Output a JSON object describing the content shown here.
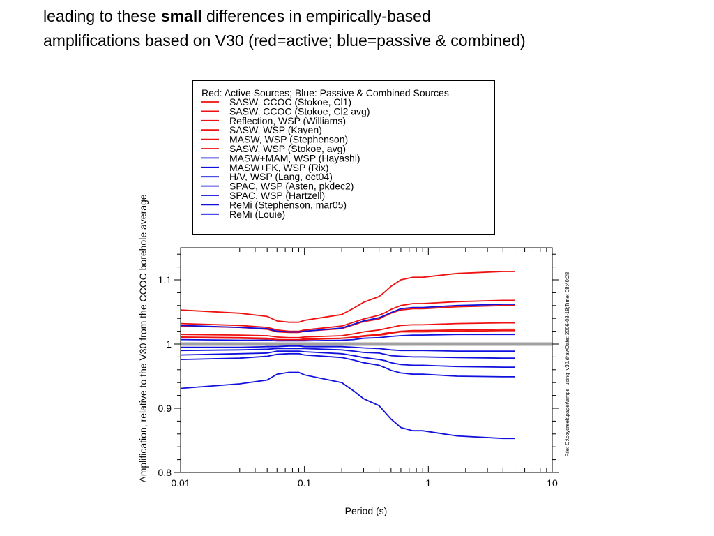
{
  "slide": {
    "title_pre": "leading to these ",
    "title_bold": "small",
    "title_post": " differences in empirically-based amplifications based on V30 (red=active; blue=passive & combined)"
  },
  "colors": {
    "active": "#ee1111",
    "passive": "#1111dd",
    "reference": "#a0a0a0"
  },
  "chart_data": {
    "type": "line",
    "xlabel": "Period (s)",
    "ylabel": "Amplification, relative to the V30 from the CCOC borehole average",
    "xscale": "log",
    "xlim": [
      0.01,
      10
    ],
    "ylim": [
      0.8,
      1.15
    ],
    "xticks": [
      {
        "v": 0.01,
        "label": "0.01"
      },
      {
        "v": 0.1,
        "label": "0.1"
      },
      {
        "v": 1,
        "label": "1"
      },
      {
        "v": 10,
        "label": "10"
      }
    ],
    "yticks": [
      {
        "v": 0.8,
        "label": "0.8"
      },
      {
        "v": 0.9,
        "label": "0.9"
      },
      {
        "v": 1,
        "label": "1"
      },
      {
        "v": 1.1,
        "label": "1.1"
      }
    ],
    "reference_line": 1.0,
    "legend_title": "Red: Active Sources; Blue: Passive & Combined Sources",
    "legend_position": "above plot",
    "side_note": "File: C:\\coycreek\\paper\\amps_using_v30.drawDate: 2006-08-18;Time: 08:40:28",
    "x": [
      0.01,
      0.03,
      0.05,
      0.06,
      0.075,
      0.09,
      0.1,
      0.2,
      0.25,
      0.3,
      0.4,
      0.45,
      0.5,
      0.6,
      0.75,
      0.9,
      1.7,
      4,
      5
    ],
    "series": [
      {
        "name": "SASW, CCOC (Stokoe, Cl1)",
        "group": "active",
        "values": [
          1.053,
          1.048,
          1.043,
          1.036,
          1.034,
          1.034,
          1.037,
          1.046,
          1.056,
          1.065,
          1.074,
          1.082,
          1.09,
          1.1,
          1.104,
          1.104,
          1.11,
          1.113,
          1.113
        ]
      },
      {
        "name": "SASW, CCOC (Stokoe, Cl2 avg)",
        "group": "active",
        "values": [
          1.032,
          1.029,
          1.026,
          1.022,
          1.02,
          1.02,
          1.022,
          1.028,
          1.034,
          1.039,
          1.045,
          1.049,
          1.054,
          1.06,
          1.063,
          1.063,
          1.066,
          1.068,
          1.068
        ]
      },
      {
        "name": "Reflection, WSP (Williams)",
        "group": "active",
        "values": [
          1.028,
          1.026,
          1.023,
          1.019,
          1.018,
          1.018,
          1.02,
          1.024,
          1.03,
          1.035,
          1.039,
          1.044,
          1.048,
          1.053,
          1.055,
          1.055,
          1.058,
          1.06,
          1.06
        ]
      },
      {
        "name": "SASW, WSP (Kayen)",
        "group": "active",
        "values": [
          1.015,
          1.014,
          1.013,
          1.011,
          1.01,
          1.01,
          1.011,
          1.013,
          1.016,
          1.019,
          1.022,
          1.024,
          1.026,
          1.029,
          1.03,
          1.03,
          1.032,
          1.033,
          1.033
        ]
      },
      {
        "name": "MASW, WSP (Stephenson)",
        "group": "active",
        "values": [
          1.011,
          1.01,
          1.009,
          1.007,
          1.007,
          1.007,
          1.008,
          1.009,
          1.011,
          1.013,
          1.015,
          1.017,
          1.018,
          1.02,
          1.021,
          1.021,
          1.022,
          1.023,
          1.023
        ]
      },
      {
        "name": "SASW, WSP (Stokoe, avg)",
        "group": "active",
        "values": [
          1.01,
          1.009,
          1.008,
          1.007,
          1.006,
          1.006,
          1.007,
          1.009,
          1.01,
          1.012,
          1.014,
          1.015,
          1.017,
          1.019,
          1.019,
          1.019,
          1.02,
          1.021,
          1.021
        ]
      },
      {
        "name": "MASW+MAM, WSP (Hayashi)",
        "group": "passive",
        "values": [
          1.029,
          1.026,
          1.024,
          1.02,
          1.019,
          1.019,
          1.02,
          1.025,
          1.031,
          1.036,
          1.041,
          1.045,
          1.049,
          1.055,
          1.057,
          1.057,
          1.06,
          1.062,
          1.062
        ]
      },
      {
        "name": "MASW+FK, WSP (Rix)",
        "group": "passive",
        "values": [
          1.007,
          1.006,
          1.006,
          1.005,
          1.005,
          1.005,
          1.005,
          1.006,
          1.007,
          1.009,
          1.01,
          1.011,
          1.012,
          1.013,
          1.014,
          1.014,
          1.015,
          1.015,
          1.015
        ]
      },
      {
        "name": "H/V, WSP (Lang, oct04)",
        "group": "passive",
        "values": [
          0.995,
          0.995,
          0.996,
          0.996,
          0.997,
          0.997,
          0.996,
          0.996,
          0.995,
          0.994,
          0.993,
          0.992,
          0.991,
          0.99,
          0.99,
          0.99,
          0.989,
          0.989,
          0.989
        ]
      },
      {
        "name": "SPAC, WSP (Asten, pkdec2)",
        "group": "passive",
        "values": [
          0.99,
          0.991,
          0.992,
          0.993,
          0.993,
          0.993,
          0.993,
          0.991,
          0.989,
          0.987,
          0.986,
          0.984,
          0.982,
          0.981,
          0.98,
          0.98,
          0.979,
          0.978,
          0.978
        ]
      },
      {
        "name": "SPAC, WSP (Hartzell)",
        "group": "passive",
        "values": [
          0.983,
          0.985,
          0.986,
          0.989,
          0.989,
          0.989,
          0.988,
          0.985,
          0.982,
          0.979,
          0.976,
          0.974,
          0.971,
          0.968,
          0.967,
          0.967,
          0.965,
          0.964,
          0.964
        ]
      },
      {
        "name": "ReMi (Stephenson, mar05)",
        "group": "passive",
        "values": [
          0.976,
          0.978,
          0.981,
          0.984,
          0.985,
          0.985,
          0.983,
          0.979,
          0.975,
          0.971,
          0.967,
          0.963,
          0.959,
          0.955,
          0.953,
          0.953,
          0.95,
          0.949,
          0.949
        ]
      },
      {
        "name": "ReMi (Louie)",
        "group": "passive",
        "values": [
          0.931,
          0.938,
          0.944,
          0.953,
          0.956,
          0.956,
          0.952,
          0.94,
          0.927,
          0.915,
          0.904,
          0.893,
          0.883,
          0.87,
          0.865,
          0.865,
          0.857,
          0.853,
          0.853
        ]
      }
    ]
  }
}
